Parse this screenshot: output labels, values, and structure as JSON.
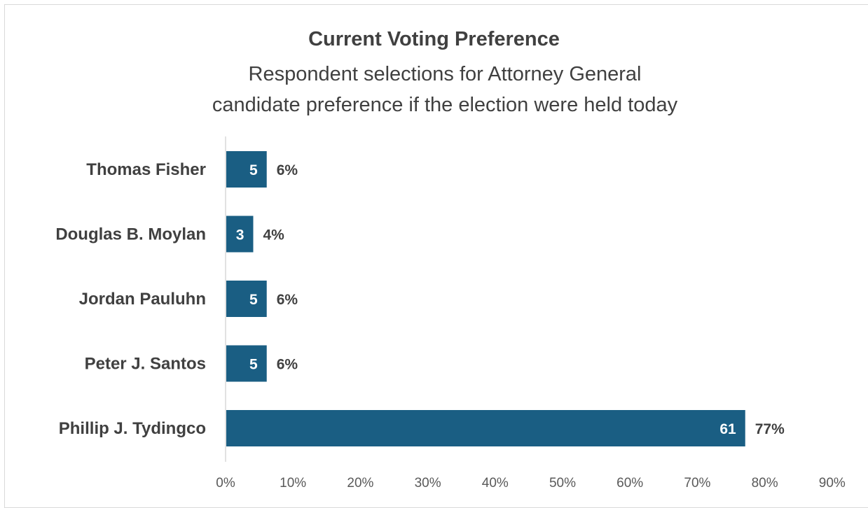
{
  "chart_data": {
    "type": "bar",
    "orientation": "horizontal",
    "title": "Current Voting Preference",
    "subtitle": "Respondent selections for Attorney General candidate preference if the election were held today",
    "categories": [
      "Thomas Fisher",
      "Douglas B. Moylan",
      "Jordan Pauluhn",
      "Peter J. Santos",
      "Phillip J. Tydingco"
    ],
    "counts": [
      5,
      3,
      5,
      5,
      61
    ],
    "values": [
      6,
      4,
      6,
      6,
      77
    ],
    "value_labels": [
      "6%",
      "4%",
      "6%",
      "6%",
      "77%"
    ],
    "count_labels": [
      "5",
      "3",
      "5",
      "5",
      "61"
    ],
    "xlim": [
      0,
      90
    ],
    "x_ticks": [
      "0%",
      "10%",
      "20%",
      "30%",
      "40%",
      "50%",
      "60%",
      "70%",
      "80%",
      "90%"
    ],
    "grid": false,
    "bar_color": "#1a5e83",
    "axis_color": "#d9d9d9"
  }
}
